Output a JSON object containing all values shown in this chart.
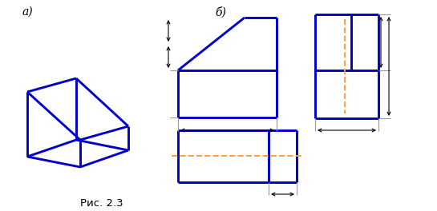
{
  "bg_color": "#ffffff",
  "blue": "#0000cc",
  "orange": "#FFA040",
  "gray": "#999999",
  "black": "#000000",
  "label_a": "а)",
  "label_b": "б)",
  "caption": "Рис. 2.3",
  "figsize": [
    5.45,
    2.64
  ],
  "dpi": 100
}
